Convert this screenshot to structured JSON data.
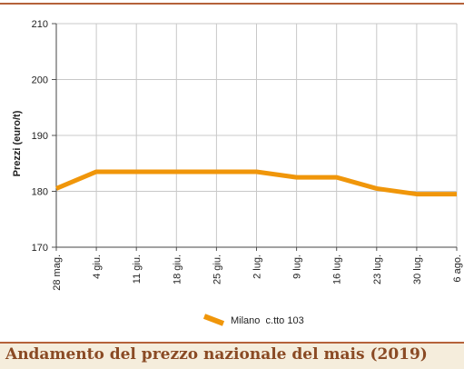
{
  "chart_data": {
    "type": "line",
    "title": "",
    "xlabel": "",
    "ylabel": "Prezzi (euro/t)",
    "categories": [
      "28 mag.",
      "4 giu.",
      "11 giu.",
      "18 giu.",
      "25 giu.",
      "2 lug.",
      "9 lug.",
      "16 lug.",
      "23 lug.",
      "30 lug.",
      "6 ago."
    ],
    "series": [
      {
        "name": "Milano  c.tto 103",
        "color": "#f0960a",
        "values": [
          180.5,
          183.5,
          183.5,
          183.5,
          183.5,
          183.5,
          182.5,
          182.5,
          180.5,
          179.5,
          179.5
        ]
      }
    ],
    "ylim": [
      170,
      210
    ],
    "yticks": [
      170,
      180,
      190,
      200,
      210
    ],
    "grid": true,
    "legend_position": "bottom-center"
  },
  "caption": "Andamento del prezzo nazionale del mais (2019)",
  "colors": {
    "rule": "#b5623a",
    "caption_bg": "#f5eddc",
    "caption_text": "#8a4a24",
    "grid": "#c8c8c8"
  }
}
